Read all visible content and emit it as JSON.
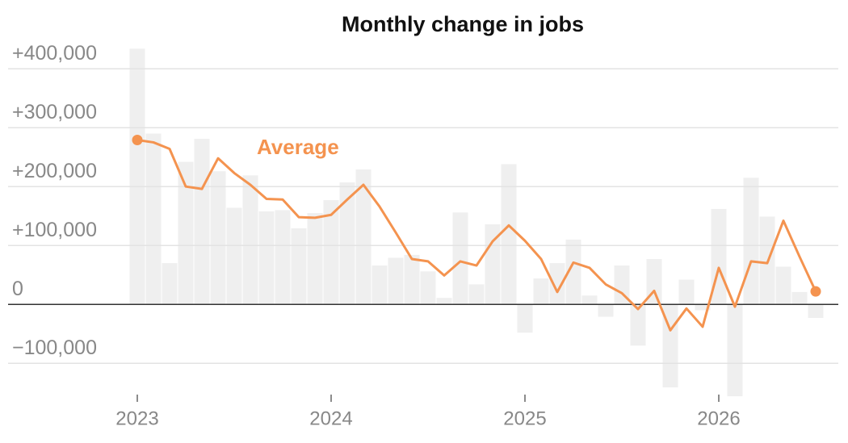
{
  "chart_data": {
    "type": "bar-line",
    "title": "Monthly change in jobs",
    "categories": [
      "2023",
      null,
      null,
      null,
      null,
      null,
      null,
      null,
      null,
      null,
      null,
      null,
      "2024",
      null,
      null,
      null,
      null,
      null,
      null,
      null,
      null,
      null,
      null,
      null,
      "2025",
      null,
      null,
      null,
      null,
      null,
      null,
      null,
      null,
      null,
      null,
      null,
      "2026",
      null,
      null,
      null,
      null,
      null,
      null
    ],
    "series": [
      {
        "type": "bar",
        "color": "#efefef",
        "values": [
          434000,
          290000,
          70000,
          242000,
          281000,
          226000,
          164000,
          219000,
          158000,
          160000,
          129000,
          155000,
          177000,
          207000,
          229000,
          66000,
          79000,
          84000,
          56000,
          11000,
          156000,
          34000,
          136000,
          238000,
          -48000,
          44000,
          70000,
          110000,
          15000,
          -21000,
          66000,
          -70000,
          77000,
          -141000,
          42000,
          -10000,
          162000,
          -156000,
          215000,
          149000,
          64000,
          21000,
          -23000
        ]
      },
      {
        "type": "line",
        "name": "Average",
        "color": "#f4934f",
        "values": [
          279000,
          275000,
          264000,
          200000,
          196000,
          248000,
          223000,
          203000,
          179000,
          178000,
          148000,
          147000,
          152000,
          178000,
          203000,
          166000,
          122000,
          77000,
          73000,
          49000,
          73000,
          66000,
          107000,
          134000,
          108000,
          77000,
          21000,
          71000,
          62000,
          34000,
          19000,
          -8000,
          23000,
          -44000,
          -7000,
          -38000,
          62000,
          -4000,
          73000,
          70000,
          142000,
          81000,
          22000
        ]
      }
    ],
    "ylim": [
      -160000,
      440000
    ],
    "yticks": [
      {
        "value": -100000,
        "label": "−100,000"
      },
      0,
      {
        "value": 100000,
        "label": "+100,000"
      },
      {
        "value": 200000,
        "label": "+200,000"
      },
      {
        "value": 300000,
        "label": "+300,000"
      },
      {
        "value": 400000,
        "label": "+400,000"
      }
    ],
    "grid": true
  }
}
